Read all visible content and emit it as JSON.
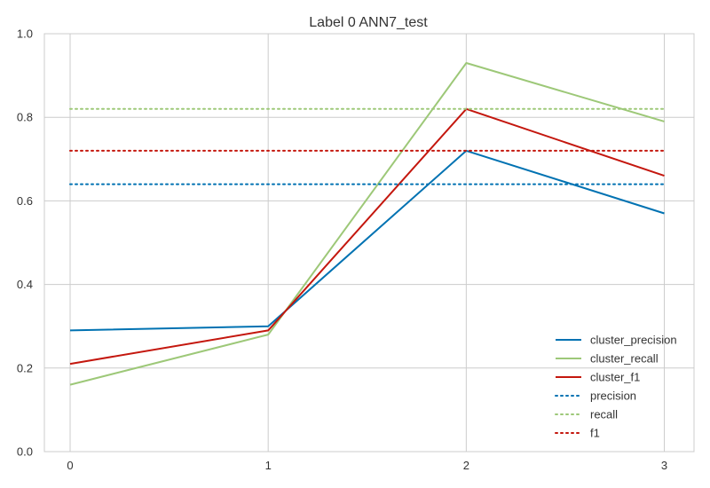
{
  "chart_data": {
    "type": "line",
    "title": "Label 0 ANN7_test",
    "xlabel": "",
    "ylabel": "",
    "x": [
      0,
      1,
      2,
      3
    ],
    "x_ticks": [
      "0",
      "1",
      "2",
      "3"
    ],
    "y_ticks": [
      "0.0",
      "0.2",
      "0.4",
      "0.6",
      "0.8",
      "1.0"
    ],
    "xlim": [
      -0.13,
      3.15
    ],
    "ylim": [
      0,
      1
    ],
    "grid": true,
    "legend_position": "lower-right",
    "series": [
      {
        "name": "cluster_precision",
        "values": [
          0.29,
          0.3,
          0.72,
          0.57
        ],
        "color": "#0072b2",
        "style": "solid"
      },
      {
        "name": "cluster_recall",
        "values": [
          0.16,
          0.28,
          0.93,
          0.79
        ],
        "color": "#9dc878",
        "style": "solid"
      },
      {
        "name": "cluster_f1",
        "values": [
          0.21,
          0.29,
          0.82,
          0.66
        ],
        "color": "#c4170e",
        "style": "solid"
      },
      {
        "name": "precision",
        "values": [
          0.64,
          0.64,
          0.64,
          0.64
        ],
        "color": "#0072b2",
        "style": "dotted"
      },
      {
        "name": "recall",
        "values": [
          0.82,
          0.82,
          0.82,
          0.82
        ],
        "color": "#9dc878",
        "style": "dotted"
      },
      {
        "name": "f1",
        "values": [
          0.72,
          0.72,
          0.72,
          0.72
        ],
        "color": "#c4170e",
        "style": "dotted"
      }
    ]
  }
}
